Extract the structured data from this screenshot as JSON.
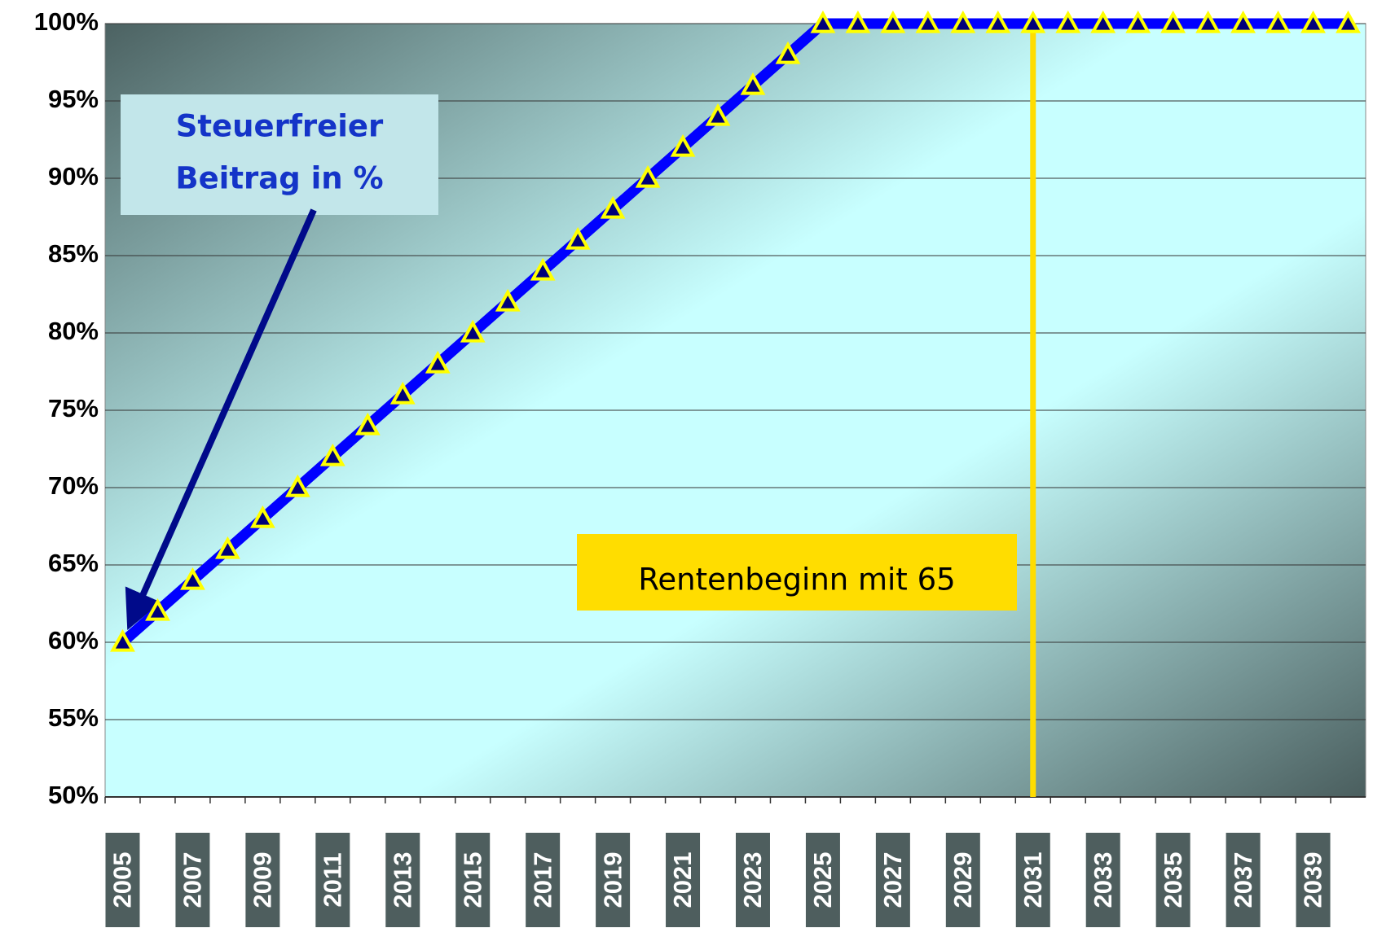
{
  "chart_data": {
    "type": "line",
    "categories": [
      "2005",
      null,
      "2007",
      null,
      "2009",
      null,
      "2011",
      null,
      "2013",
      null,
      "2015",
      null,
      "2017",
      null,
      "2019",
      null,
      "2021",
      null,
      "2023",
      null,
      "2025",
      null,
      "2027",
      null,
      "2029",
      null,
      "2031",
      null,
      "2033",
      null,
      "2035",
      null,
      "2037",
      null,
      "2039",
      null
    ],
    "series": [
      {
        "color": "#0000ff",
        "marker_fill": "#00007a",
        "marker_stroke": "#ffff00",
        "values": [
          60,
          62,
          64,
          66,
          68,
          70,
          72,
          74,
          76,
          78,
          80,
          82,
          84,
          86,
          88,
          90,
          92,
          94,
          96,
          98,
          100,
          100,
          100,
          100,
          100,
          100,
          100,
          100,
          100,
          100,
          100,
          100,
          100,
          100,
          100,
          100
        ]
      }
    ],
    "ylim": [
      50,
      100
    ],
    "yticks": [
      {
        "value": 50,
        "label": "50%"
      },
      {
        "value": 55,
        "label": "55%"
      },
      {
        "value": 60,
        "label": "60%"
      },
      {
        "value": 65,
        "label": "65%"
      },
      {
        "value": 70,
        "label": "70%"
      },
      {
        "value": 75,
        "label": "75%"
      },
      {
        "value": 80,
        "label": "80%"
      },
      {
        "value": 85,
        "label": "85%"
      },
      {
        "value": 90,
        "label": "90%"
      },
      {
        "value": 95,
        "label": "95%"
      },
      {
        "value": 100,
        "label": "100%"
      }
    ],
    "grid": true,
    "callout": {
      "lines": [
        "Steuerfreier",
        "Beitrag in %"
      ],
      "color": "#1434c8"
    },
    "annotation": {
      "text": "Rentenbeginn mit 65",
      "x": "2031",
      "color": "#ffdd00"
    }
  }
}
